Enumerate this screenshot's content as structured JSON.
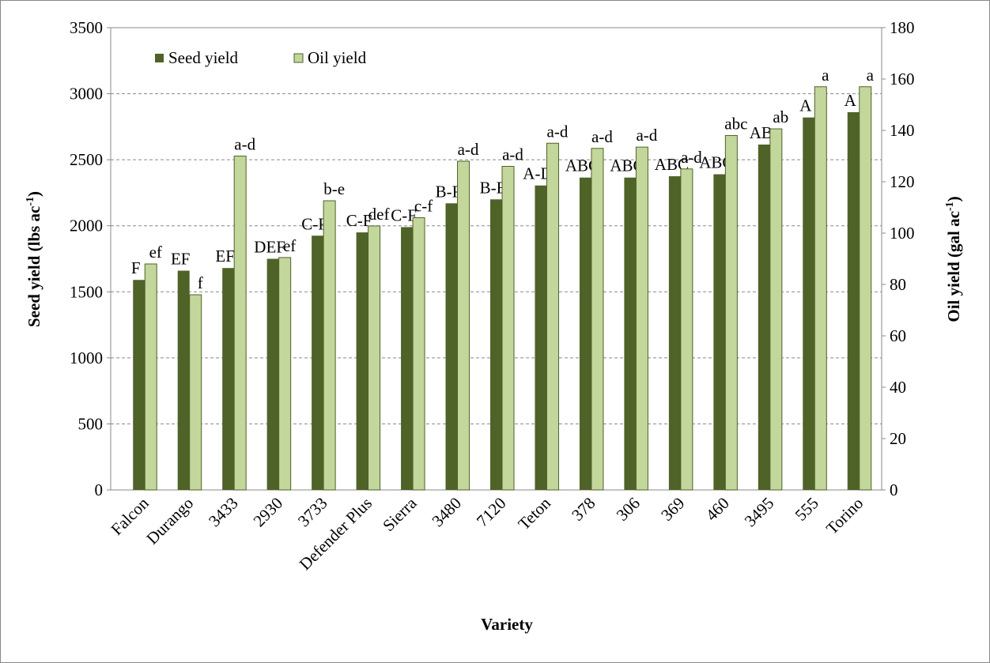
{
  "chart_data": {
    "type": "bar",
    "x_label": "Variety",
    "y_label": {
      "text": "Seed yield (lbs ac",
      "sup": "-1",
      "end": ")"
    },
    "y2_label": {
      "text": "Oil yield (gal ac",
      "sup": "-1",
      "end": ")"
    },
    "categories": [
      "Falcon",
      "Durango",
      "3433",
      "2930",
      "3733",
      "Defender Plus",
      "Sierra",
      "3480",
      "7120",
      "Teton",
      "378",
      "306",
      "369",
      "460",
      "3495",
      "555",
      "Torino"
    ],
    "series": [
      {
        "name": "Seed yield",
        "color": "#4f6228",
        "axis": "y",
        "values": [
          1590,
          1660,
          1680,
          1750,
          1925,
          1950,
          1990,
          2170,
          2200,
          2305,
          2365,
          2365,
          2375,
          2390,
          2615,
          2820,
          2860
        ],
        "letters": [
          "F",
          "EF",
          "EF",
          "DEF",
          "C-F",
          "C-F",
          "C-F",
          "B-F",
          "B-E",
          "A-D",
          "ABC",
          "ABC",
          "ABC",
          "ABC",
          "AB",
          "A",
          "A"
        ]
      },
      {
        "name": "Oil yield",
        "color": "#c3d69b",
        "axis": "y2",
        "values": [
          88,
          76,
          130,
          90.5,
          112.6,
          102.8,
          106,
          128,
          126,
          135,
          133,
          133.5,
          125,
          138,
          140.6,
          157,
          157
        ],
        "letters": [
          "ef",
          "f",
          "a-d",
          "ef",
          "b-e",
          "def",
          "c-f",
          "a-d",
          "a-d",
          "a-d",
          "a-d",
          "a-d",
          "a-d",
          "abc",
          "ab",
          "a",
          "a"
        ]
      }
    ],
    "ylim": [
      0,
      3500
    ],
    "yticks": [
      0,
      500,
      1000,
      1500,
      2000,
      2500,
      3000,
      3500
    ],
    "y2lim": [
      0,
      180
    ],
    "y2ticks": [
      0,
      20,
      40,
      60,
      80,
      100,
      120,
      140,
      160,
      180
    ],
    "grid": true,
    "legend": "top-left"
  }
}
